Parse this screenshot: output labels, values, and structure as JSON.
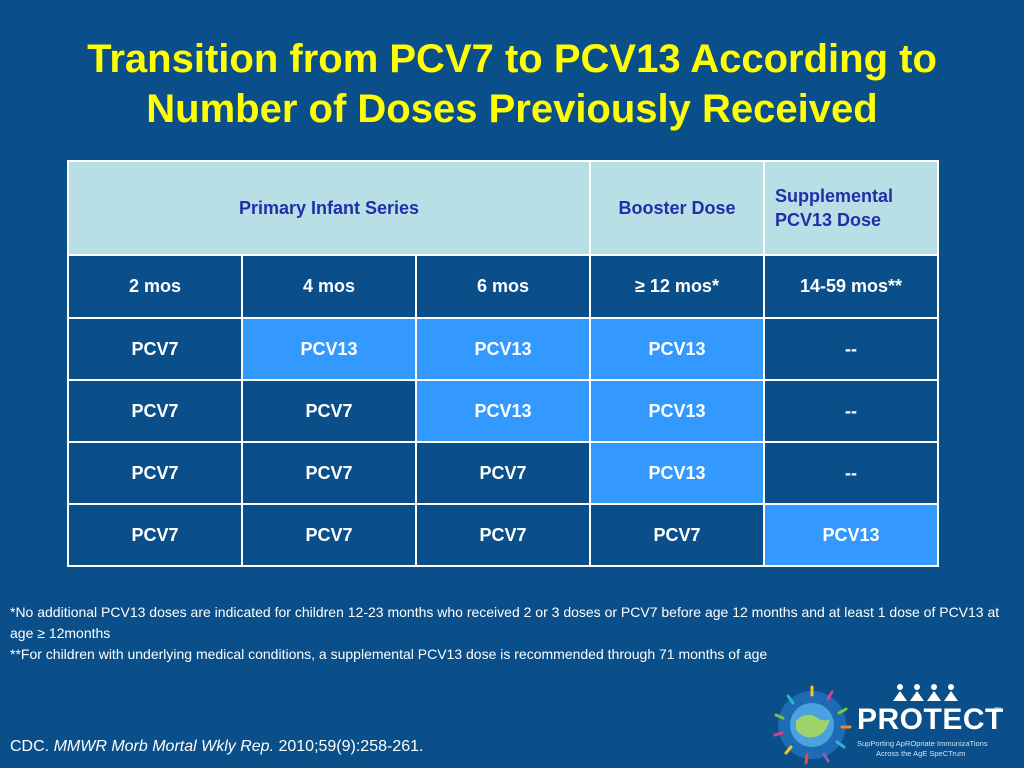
{
  "title": {
    "line1": "Transition from PCV7 to PCV13 According to",
    "line2": "Number of Doses Previously Received"
  },
  "table": {
    "group_headers": {
      "primary": "Primary Infant Series",
      "booster": "Booster Dose",
      "supplemental_line1": "Supplemental",
      "supplemental_line2": "PCV13 Dose"
    },
    "age_headers": [
      "2 mos",
      "4 mos",
      "6 mos",
      "≥ 12 mos*",
      "14-59 mos**"
    ],
    "rows": [
      [
        "PCV7",
        "PCV13",
        "PCV13",
        "PCV13",
        "--"
      ],
      [
        "PCV7",
        "PCV7",
        "PCV13",
        "PCV13",
        "--"
      ],
      [
        "PCV7",
        "PCV7",
        "PCV7",
        "PCV13",
        "--"
      ],
      [
        "PCV7",
        "PCV7",
        "PCV7",
        "PCV7",
        "PCV13"
      ]
    ]
  },
  "footnotes": {
    "note1": "*No additional PCV13 doses are indicated for children 12-23 months who received 2 or 3 doses or PCV7 before age 12 months and at least 1 dose of PCV13 at age ≥ 12months",
    "note2": "**For children with underlying medical conditions, a supplemental PCV13 dose is recommended through 71 months of age"
  },
  "citation": {
    "author": "CDC.",
    "journal": "MMWR Morb Mortal Wkly Rep.",
    "details": "2010;59(9):258-261."
  },
  "logo": {
    "wordmark": "PROTECT",
    "tm": "™",
    "tagline_line1": "SupPorting ApROpriate ImmunizaTions",
    "tagline_line2": "Across the AgE SpeCTrum"
  },
  "colors": {
    "background": "#0a4f8a",
    "title": "#ffff00",
    "header_fill": "#b8dfe6",
    "header_text": "#1f2fa8",
    "highlight": "#3399ff"
  }
}
